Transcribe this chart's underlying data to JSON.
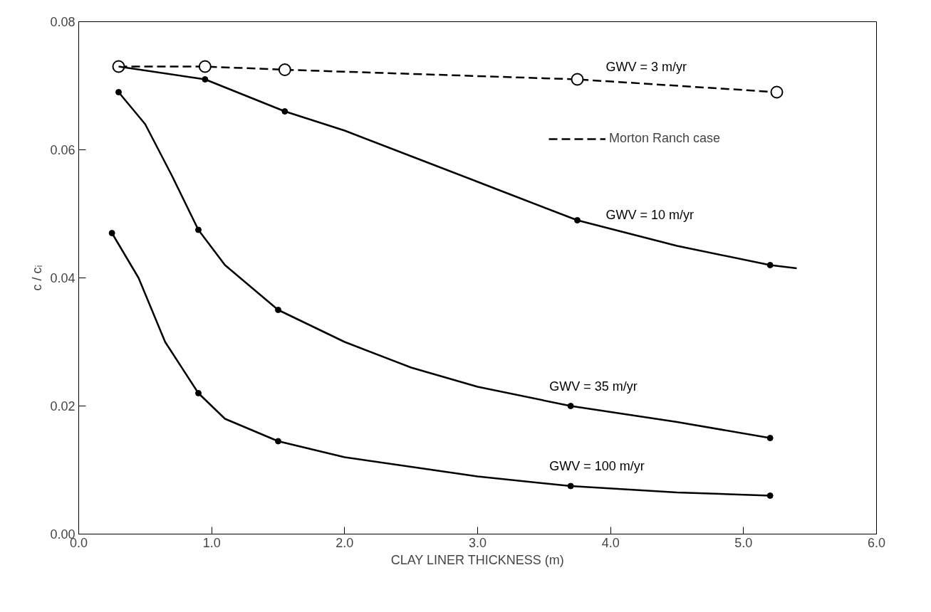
{
  "chart_data": {
    "type": "line",
    "xlabel": "CLAY LINER THICKNESS (m)",
    "ylabel": "c / cᵢ",
    "xlim": [
      0,
      6
    ],
    "ylim": [
      0,
      0.08
    ],
    "xticks": [
      {
        "value": 0,
        "label": "0.0"
      },
      {
        "value": 1,
        "label": "1.0"
      },
      {
        "value": 2,
        "label": "2.0"
      },
      {
        "value": 3,
        "label": "3.0"
      },
      {
        "value": 4,
        "label": "4.0"
      },
      {
        "value": 5,
        "label": "5.0"
      },
      {
        "value": 6,
        "label": "6.0"
      }
    ],
    "yticks": [
      {
        "value": 0,
        "label": "0.00"
      },
      {
        "value": 0.02,
        "label": "0.02"
      },
      {
        "value": 0.04,
        "label": "0.04"
      },
      {
        "value": 0.06,
        "label": "0.06"
      },
      {
        "value": 0.08,
        "label": "0.08"
      }
    ],
    "grid": false,
    "legend": "top right",
    "series": [
      {
        "name": "Morton Ranch case",
        "line_style": "dashed",
        "marker": "circle",
        "color": "#000000",
        "x": [
          0.3,
          0.95,
          1.55,
          3.75,
          5.25
        ],
        "values": [
          0.073,
          0.073,
          0.0725,
          0.071,
          0.069
        ]
      },
      {
        "line_style": "solid",
        "marker": "none",
        "color": "#000000",
        "x": [
          0.3,
          0.95,
          1.55,
          2.0,
          2.5,
          3.0,
          3.75,
          4.5,
          5.2,
          5.4
        ],
        "values": [
          0.073,
          0.071,
          0.066,
          0.063,
          0.059,
          0.055,
          0.049,
          0.045,
          0.042,
          0.0415
        ]
      },
      {
        "line_style": "solid",
        "marker": "none",
        "color": "#000000",
        "x": [
          0.3,
          0.5,
          0.7,
          0.9,
          1.1,
          1.5,
          2.0,
          2.5,
          3.0,
          3.7,
          4.5,
          5.2
        ],
        "values": [
          0.069,
          0.064,
          0.056,
          0.0475,
          0.042,
          0.035,
          0.03,
          0.026,
          0.023,
          0.02,
          0.0175,
          0.015
        ]
      },
      {
        "line_style": "solid",
        "marker": "none",
        "color": "#000000",
        "x": [
          0.25,
          0.45,
          0.65,
          0.9,
          1.1,
          1.5,
          2.0,
          2.5,
          3.0,
          3.7,
          4.5,
          5.2
        ],
        "values": [
          0.047,
          0.04,
          0.03,
          0.022,
          0.018,
          0.0145,
          0.012,
          0.0105,
          0.009,
          0.0075,
          0.0065,
          0.006
        ]
      },
      {
        "type": "scatter",
        "marker": "circle",
        "color": "#000000",
        "x": [
          0.95,
          1.55,
          3.75,
          5.2
        ],
        "values": [
          0.071,
          0.066,
          0.049,
          0.042
        ]
      },
      {
        "type": "scatter",
        "marker": "circle",
        "color": "#000000",
        "x": [
          0.3,
          0.9,
          1.5,
          3.7,
          5.2
        ],
        "values": [
          0.069,
          0.0475,
          0.035,
          0.02,
          0.015
        ]
      },
      {
        "type": "scatter",
        "marker": "circle",
        "color": "#000000",
        "x": [
          0.25,
          0.9,
          1.5,
          3.7,
          5.2
        ],
        "values": [
          0.047,
          0.022,
          0.0145,
          0.0075,
          0.006
        ]
      }
    ],
    "annotations": [
      "GWV = 3 m/yr",
      "GWV = 10 m/yr",
      "GWV = 35 m/yr",
      "GWV = 100 m/yr"
    ]
  }
}
